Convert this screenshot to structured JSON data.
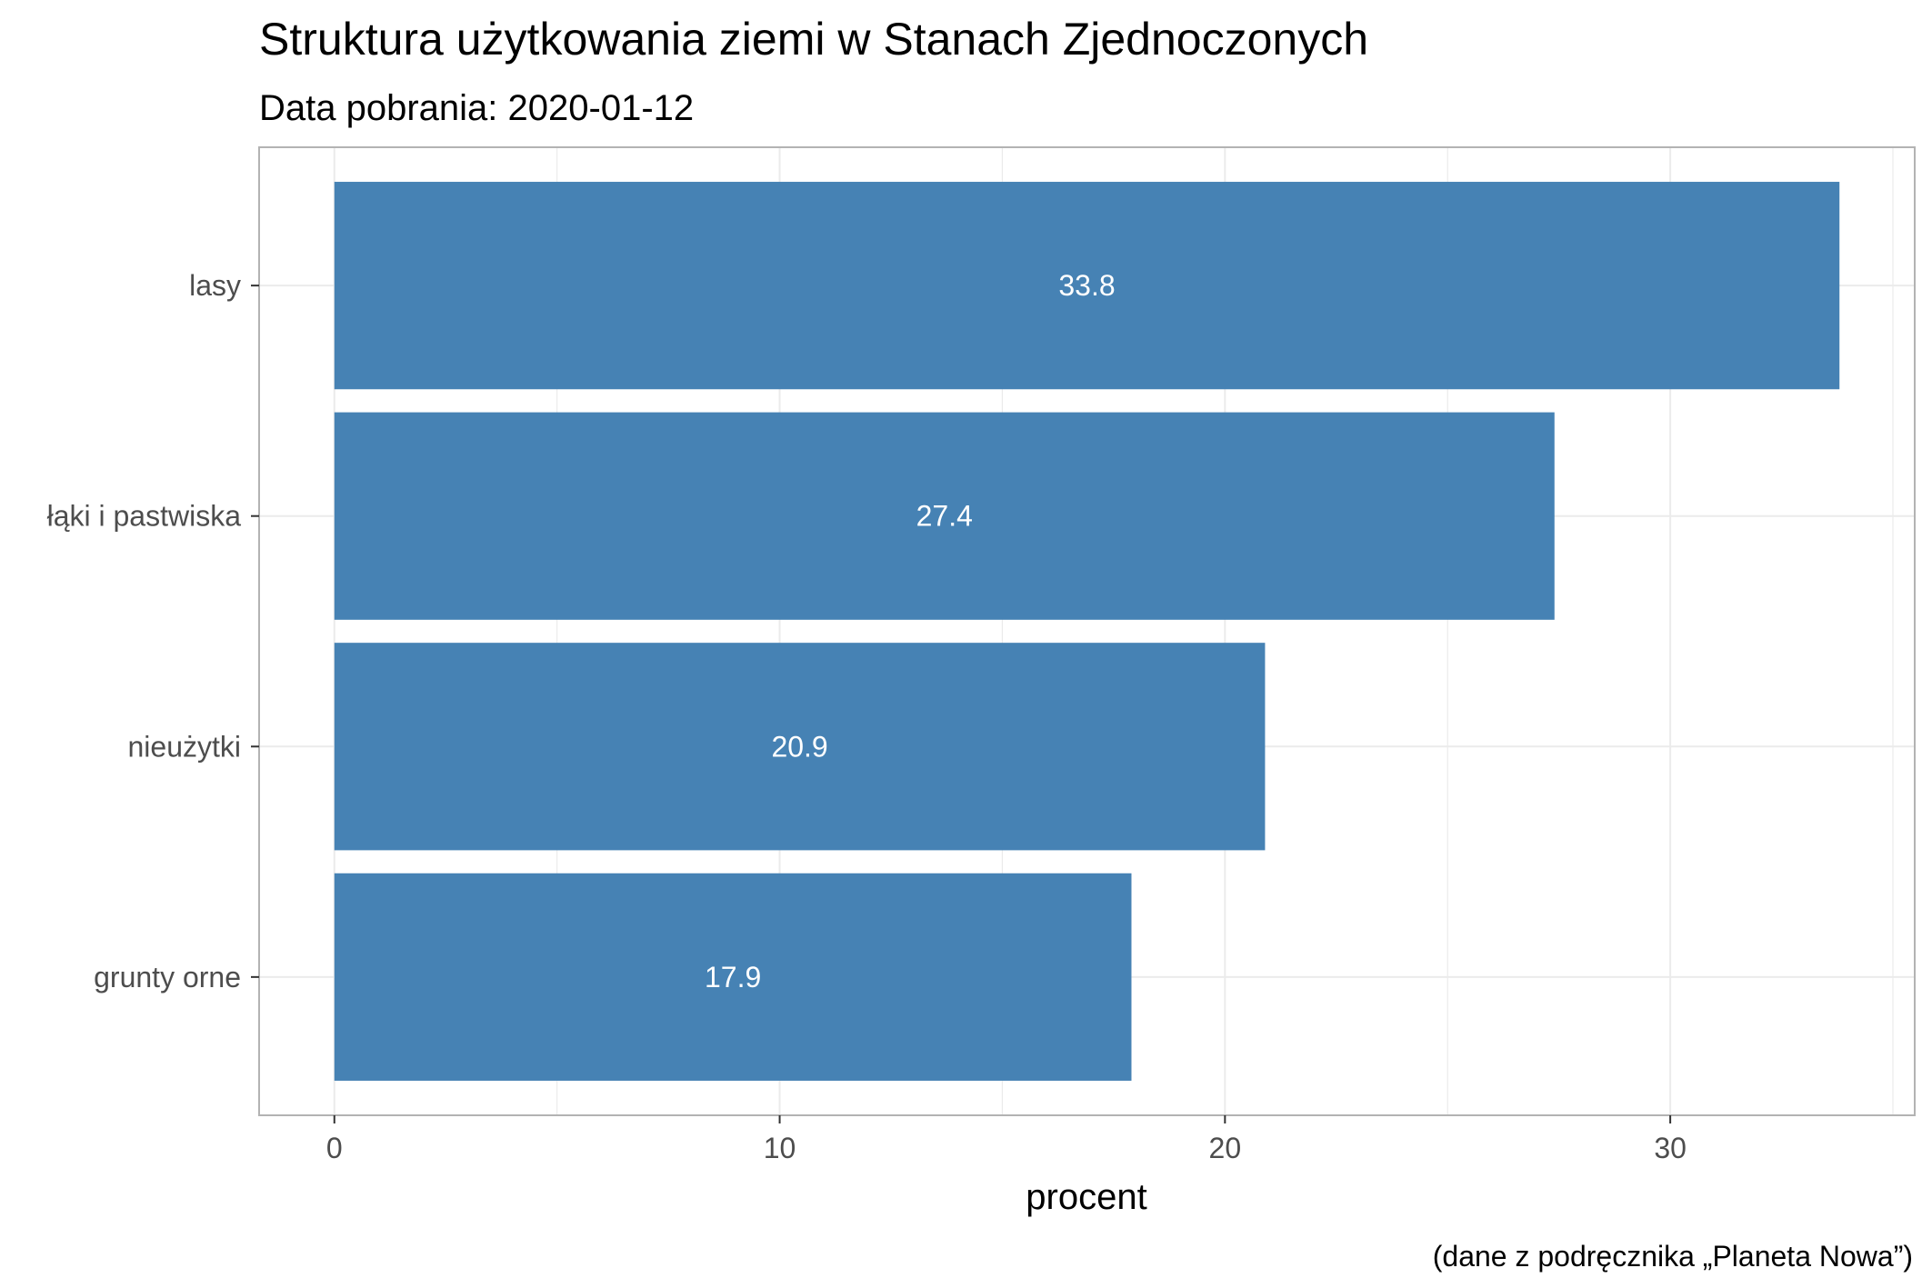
{
  "chart_data": {
    "type": "bar",
    "orientation": "horizontal",
    "title": "Struktura użytkowania ziemi w Stanach Zjednoczonych",
    "subtitle": "Data pobrania: 2020-01-12",
    "xlabel": "procent",
    "ylabel": "",
    "caption": "(dane z podręcznika „Planeta Nowa”)",
    "categories": [
      "lasy",
      "łąki i pastwiska",
      "nieużytki",
      "grunty orne"
    ],
    "values": [
      33.8,
      27.4,
      20.9,
      17.9
    ],
    "data_labels": [
      "33.8",
      "27.4",
      "20.9",
      "17.9"
    ],
    "x_ticks": [
      0,
      10,
      20,
      30
    ],
    "x_tick_labels": [
      "0",
      "10",
      "20",
      "30"
    ],
    "xlim": [
      -1.69,
      35.49
    ],
    "grid": true,
    "bar_color": "#4682B4",
    "grid_color": "#ebebeb",
    "panel_border_color": "#b3b3b3"
  }
}
